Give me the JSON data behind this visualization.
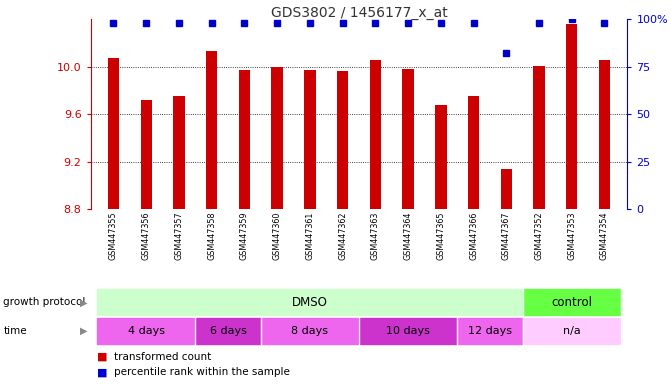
{
  "title": "GDS3802 / 1456177_x_at",
  "samples": [
    "GSM447355",
    "GSM447356",
    "GSM447357",
    "GSM447358",
    "GSM447359",
    "GSM447360",
    "GSM447361",
    "GSM447362",
    "GSM447363",
    "GSM447364",
    "GSM447365",
    "GSM447366",
    "GSM447367",
    "GSM447352",
    "GSM447353",
    "GSM447354"
  ],
  "bar_values": [
    10.07,
    9.72,
    9.75,
    10.13,
    9.97,
    10.0,
    9.97,
    9.96,
    10.06,
    9.98,
    9.68,
    9.75,
    9.14,
    10.01,
    10.36,
    10.06
  ],
  "percentile_values": [
    98,
    98,
    98,
    98,
    98,
    98,
    98,
    98,
    98,
    98,
    98,
    98,
    82,
    98,
    100,
    98
  ],
  "bar_color": "#cc0000",
  "percentile_color": "#0000cc",
  "ylim_left": [
    8.8,
    10.4
  ],
  "ylim_right": [
    0,
    100
  ],
  "yticks_left": [
    8.8,
    9.2,
    9.6,
    10.0
  ],
  "yticks_right": [
    0,
    25,
    50,
    75,
    100
  ],
  "ytick_labels_right": [
    "0",
    "25",
    "50",
    "75",
    "100%"
  ],
  "grid_values": [
    9.2,
    9.6,
    10.0
  ],
  "groups": [
    {
      "label": "DMSO",
      "color": "#ccffcc",
      "start": 0,
      "end": 13
    },
    {
      "label": "control",
      "color": "#66ff44",
      "start": 13,
      "end": 16
    }
  ],
  "time_groups": [
    {
      "label": "4 days",
      "color": "#ee66ee",
      "start": 0,
      "end": 3
    },
    {
      "label": "6 days",
      "color": "#cc33cc",
      "start": 3,
      "end": 5
    },
    {
      "label": "8 days",
      "color": "#ee66ee",
      "start": 5,
      "end": 8
    },
    {
      "label": "10 days",
      "color": "#cc33cc",
      "start": 8,
      "end": 11
    },
    {
      "label": "12 days",
      "color": "#ee66ee",
      "start": 11,
      "end": 13
    },
    {
      "label": "n/a",
      "color": "#ffccff",
      "start": 13,
      "end": 16
    }
  ],
  "legend_red_label": "transformed count",
  "legend_blue_label": "percentile rank within the sample",
  "row_labels": [
    "growth protocol",
    "time"
  ],
  "background_color": "#ffffff",
  "plot_bg_color": "#ffffff",
  "bar_width": 0.35
}
